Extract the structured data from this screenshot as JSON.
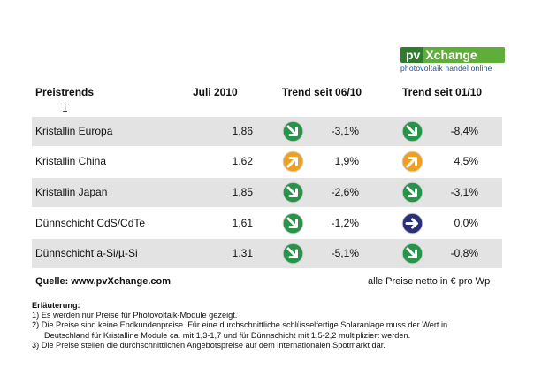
{
  "logo": {
    "brand_pv": "pv",
    "brand_x": "Xchange",
    "tagline": "photovoltaik handel online"
  },
  "header": {
    "col_name": "Preistrends",
    "col_value": "Juli 2010",
    "col_trend1": "Trend seit 06/10",
    "col_trend2": "Trend seit 01/10"
  },
  "rows": [
    {
      "name": "Kristallin Europa",
      "value": "1,86",
      "t1_dir": "down",
      "t1": "-3,1%",
      "t2_dir": "down",
      "t2": "-8,4%"
    },
    {
      "name": "Kristallin China",
      "value": "1,62",
      "t1_dir": "up",
      "t1": "1,9%",
      "t2_dir": "up",
      "t2": "4,5%"
    },
    {
      "name": "Kristallin Japan",
      "value": "1,85",
      "t1_dir": "down",
      "t1": "-2,6%",
      "t2_dir": "down",
      "t2": "-3,1%"
    },
    {
      "name": "Dünnschicht CdS/CdTe",
      "value": "1,61",
      "t1_dir": "down",
      "t1": "-1,2%",
      "t2_dir": "flat",
      "t2": "0,0%"
    },
    {
      "name": "Dünnschicht a-Si/µ-Si",
      "value": "1,31",
      "t1_dir": "down",
      "t1": "-5,1%",
      "t2_dir": "down",
      "t2": "-0,8%"
    }
  ],
  "footer": {
    "source": "Quelle: www.pvXchange.com",
    "note": "alle Preise netto in € pro Wp"
  },
  "notes": {
    "title": "Erläuterung:",
    "n1": "1) Es werden nur Preise für Photovoltaik-Module gezeigt.",
    "n2": "2) Die Preise sind keine Endkundenpreise. Für eine durchschnittliche schlüsselfertige Solaranlage  muss der Wert in",
    "n2b": "Deutschland für Kristalline Module ca. mit 1,3-1,7 und für Dünnschicht mit 1,5-2,2 multipliziert werden.",
    "n3": "3) Die Preise stellen die durchschnittlichen Angebotspreise auf dem internationalen Spotmarkt dar."
  },
  "colors": {
    "down": "#27944a",
    "up": "#f0a020",
    "flat": "#2a2f7a",
    "row_shade": "#e3e3e3"
  },
  "icons": {
    "down": "arrow-down-right-icon",
    "up": "arrow-up-right-icon",
    "flat": "arrow-right-icon"
  }
}
